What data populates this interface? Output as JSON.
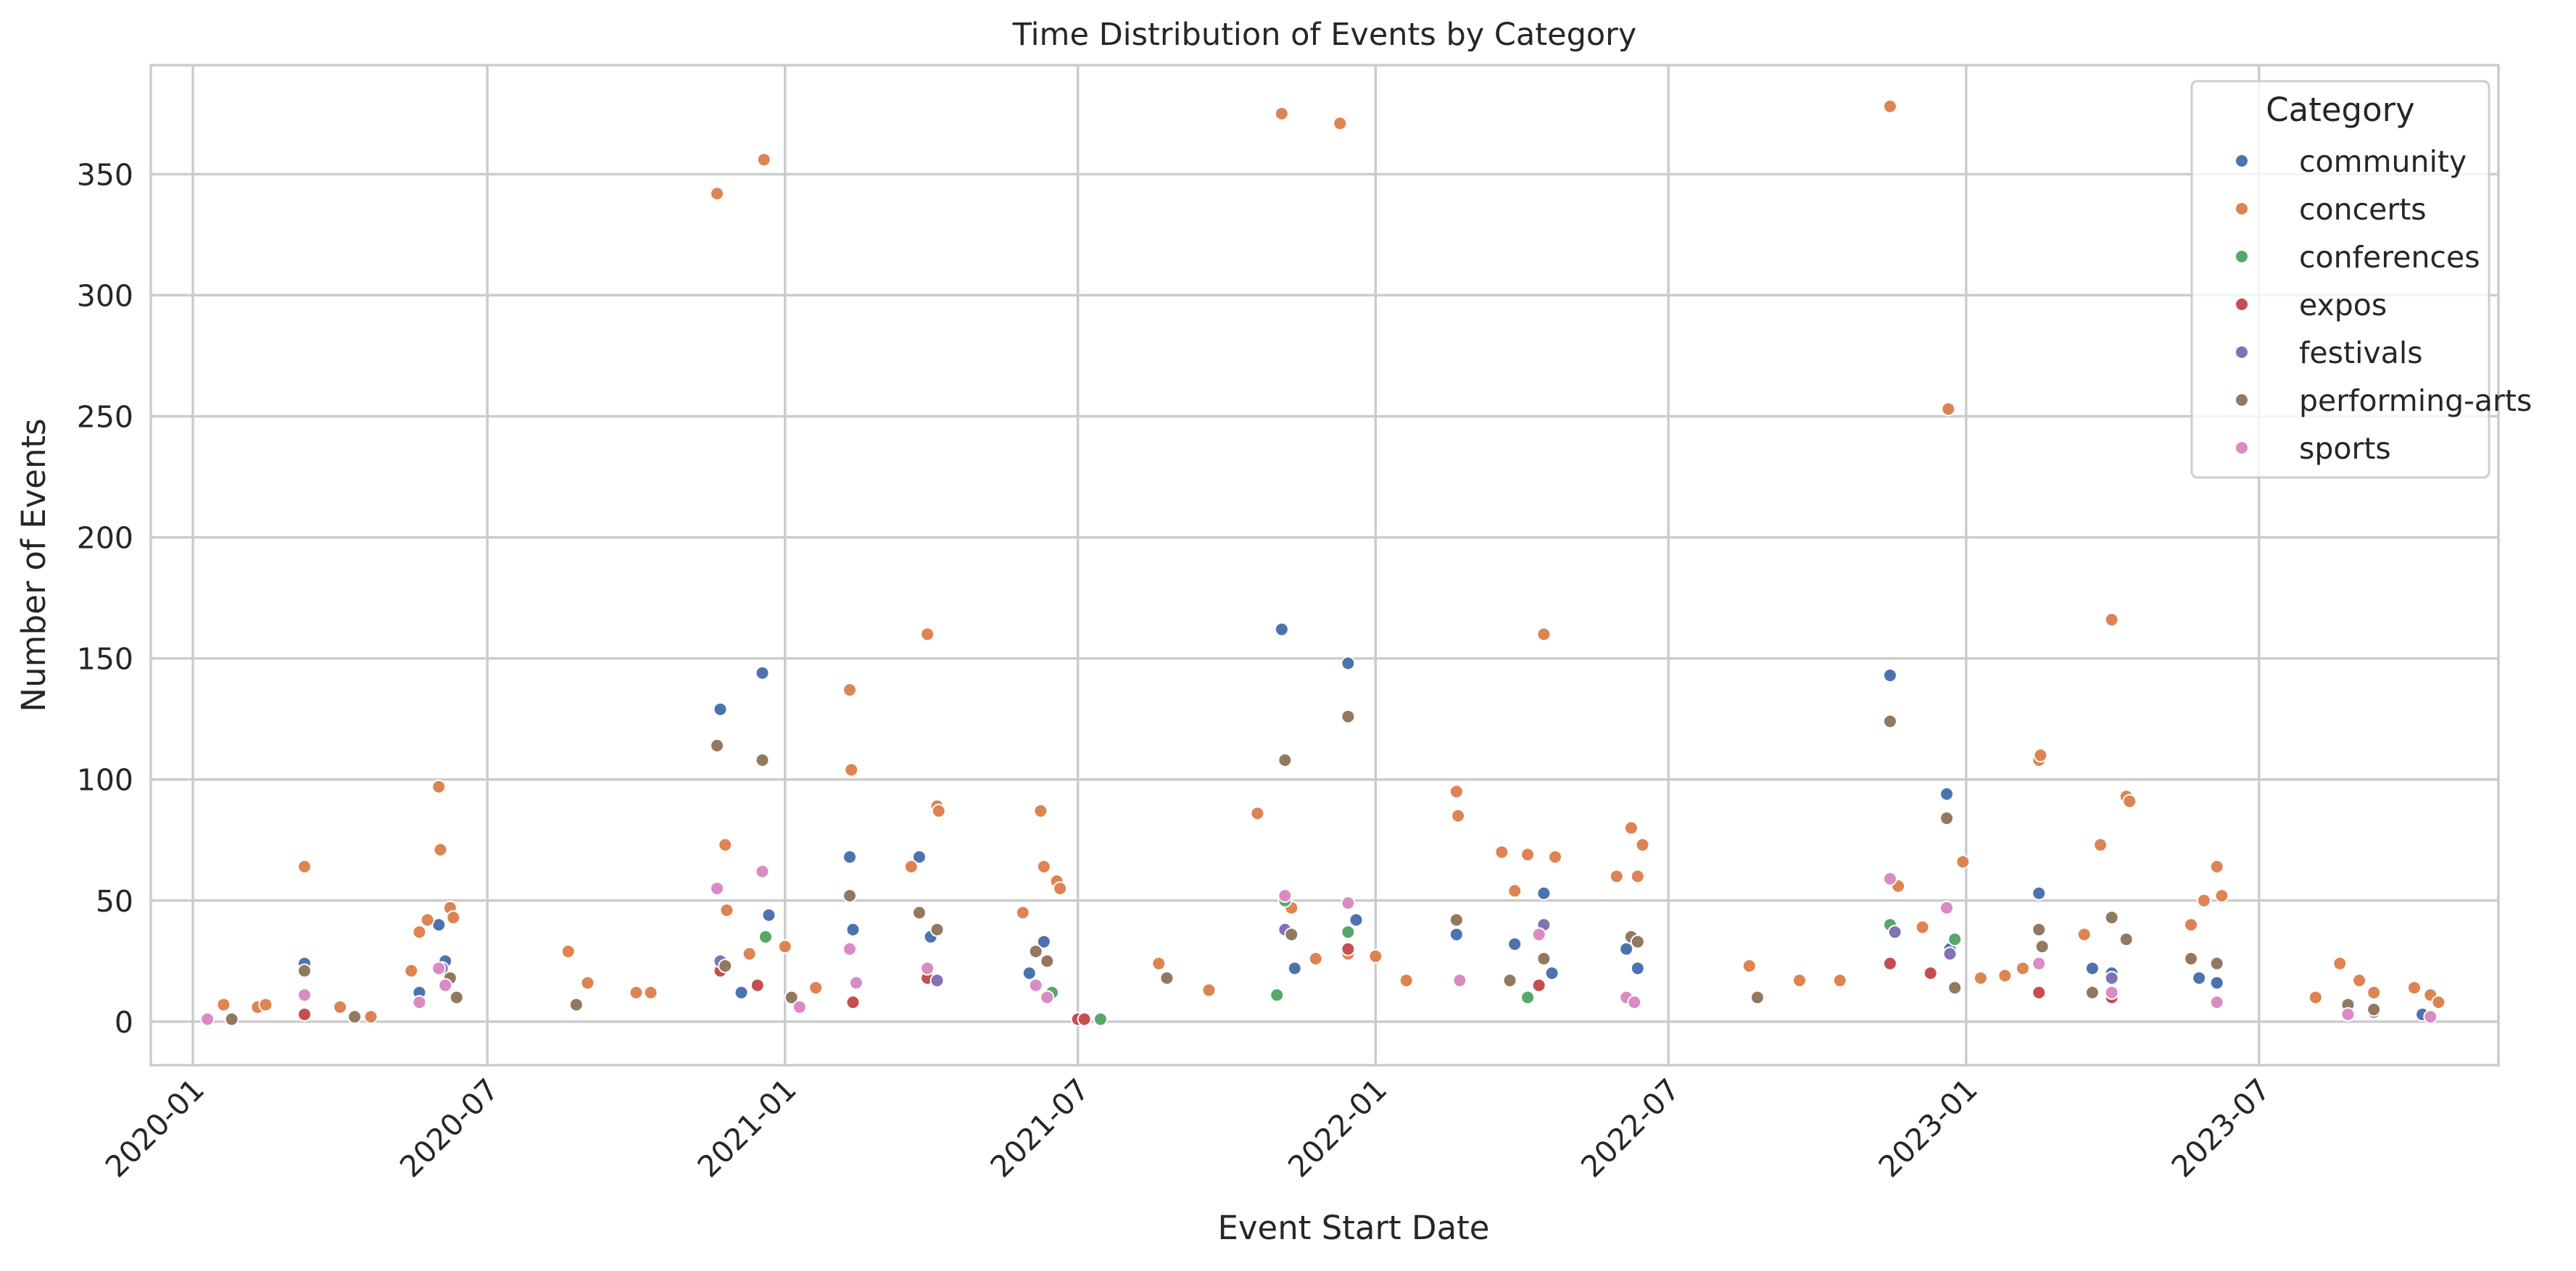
{
  "chart_data": {
    "type": "scatter",
    "title": "Time Distribution of Events by Category",
    "xlabel": "Event Start Date",
    "ylabel": "Number of Events",
    "x_type": "date",
    "xlim": [
      "2019-12-06",
      "2023-11-26"
    ],
    "ylim": [
      -18,
      395
    ],
    "x_ticks": [
      "2020-01",
      "2020-07",
      "2021-01",
      "2021-07",
      "2022-01",
      "2022-07",
      "2023-01",
      "2023-07"
    ],
    "x_tick_dates": [
      "2020-01-01",
      "2020-07-01",
      "2021-01-01",
      "2021-07-01",
      "2022-01-01",
      "2022-07-01",
      "2023-01-01",
      "2023-07-01"
    ],
    "y_ticks": [
      0,
      50,
      100,
      150,
      200,
      250,
      300,
      350
    ],
    "grid": true,
    "legend": {
      "title": "Category",
      "position": "top-right"
    },
    "series": [
      {
        "name": "community",
        "color": "#4c72b0",
        "points": [
          [
            "2020-03-10",
            24
          ],
          [
            "2020-05-20",
            12
          ],
          [
            "2020-06-01",
            40
          ],
          [
            "2020-06-05",
            25
          ],
          [
            "2020-06-08",
            18
          ],
          [
            "2020-11-22",
            129
          ],
          [
            "2020-12-05",
            12
          ],
          [
            "2020-12-18",
            144
          ],
          [
            "2020-12-22",
            44
          ],
          [
            "2021-02-10",
            68
          ],
          [
            "2021-02-12",
            38
          ],
          [
            "2021-03-25",
            68
          ],
          [
            "2021-04-01",
            35
          ],
          [
            "2021-06-01",
            20
          ],
          [
            "2021-06-10",
            33
          ],
          [
            "2021-11-04",
            162
          ],
          [
            "2021-11-12",
            22
          ],
          [
            "2021-12-15",
            148
          ],
          [
            "2021-12-20",
            42
          ],
          [
            "2022-02-20",
            36
          ],
          [
            "2022-03-28",
            32
          ],
          [
            "2022-04-15",
            53
          ],
          [
            "2022-04-20",
            20
          ],
          [
            "2022-06-05",
            30
          ],
          [
            "2022-06-12",
            22
          ],
          [
            "2022-11-15",
            143
          ],
          [
            "2022-12-20",
            94
          ],
          [
            "2022-12-22",
            30
          ],
          [
            "2023-02-15",
            53
          ],
          [
            "2023-03-20",
            22
          ],
          [
            "2023-04-01",
            20
          ],
          [
            "2023-05-25",
            18
          ],
          [
            "2023-06-05",
            16
          ],
          [
            "2023-09-10",
            4
          ],
          [
            "2023-10-10",
            3
          ]
        ]
      },
      {
        "name": "concerts",
        "color": "#dd8452",
        "points": [
          [
            "2020-01-20",
            7
          ],
          [
            "2020-02-10",
            6
          ],
          [
            "2020-02-15",
            7
          ],
          [
            "2020-03-10",
            64
          ],
          [
            "2020-04-01",
            6
          ],
          [
            "2020-04-20",
            2
          ],
          [
            "2020-05-15",
            21
          ],
          [
            "2020-05-20",
            37
          ],
          [
            "2020-05-25",
            42
          ],
          [
            "2020-06-01",
            97
          ],
          [
            "2020-06-02",
            71
          ],
          [
            "2020-06-08",
            47
          ],
          [
            "2020-06-10",
            43
          ],
          [
            "2020-08-20",
            29
          ],
          [
            "2020-09-01",
            16
          ],
          [
            "2020-10-01",
            12
          ],
          [
            "2020-10-10",
            12
          ],
          [
            "2020-11-20",
            342
          ],
          [
            "2020-11-25",
            73
          ],
          [
            "2020-11-26",
            46
          ],
          [
            "2020-12-10",
            28
          ],
          [
            "2020-12-19",
            356
          ],
          [
            "2021-01-01",
            31
          ],
          [
            "2021-01-20",
            14
          ],
          [
            "2021-02-10",
            137
          ],
          [
            "2021-02-11",
            104
          ],
          [
            "2021-03-20",
            64
          ],
          [
            "2021-03-30",
            160
          ],
          [
            "2021-04-05",
            89
          ],
          [
            "2021-04-06",
            87
          ],
          [
            "2021-05-28",
            45
          ],
          [
            "2021-06-08",
            87
          ],
          [
            "2021-06-10",
            64
          ],
          [
            "2021-06-18",
            58
          ],
          [
            "2021-06-20",
            55
          ],
          [
            "2021-08-20",
            24
          ],
          [
            "2021-09-20",
            13
          ],
          [
            "2021-10-20",
            86
          ],
          [
            "2021-11-04",
            375
          ],
          [
            "2021-11-10",
            47
          ],
          [
            "2021-11-25",
            26
          ],
          [
            "2021-12-10",
            371
          ],
          [
            "2021-12-15",
            28
          ],
          [
            "2022-01-01",
            27
          ],
          [
            "2022-01-20",
            17
          ],
          [
            "2022-02-20",
            95
          ],
          [
            "2022-02-21",
            85
          ],
          [
            "2022-03-20",
            70
          ],
          [
            "2022-03-28",
            54
          ],
          [
            "2022-04-05",
            69
          ],
          [
            "2022-04-15",
            160
          ],
          [
            "2022-04-22",
            68
          ],
          [
            "2022-05-30",
            60
          ],
          [
            "2022-06-08",
            80
          ],
          [
            "2022-06-15",
            73
          ],
          [
            "2022-06-12",
            60
          ],
          [
            "2022-08-20",
            23
          ],
          [
            "2022-09-20",
            17
          ],
          [
            "2022-10-15",
            17
          ],
          [
            "2022-11-15",
            378
          ],
          [
            "2022-11-20",
            56
          ],
          [
            "2022-12-05",
            39
          ],
          [
            "2022-12-21",
            253
          ],
          [
            "2022-12-30",
            66
          ],
          [
            "2023-01-10",
            18
          ],
          [
            "2023-01-25",
            19
          ],
          [
            "2023-02-05",
            22
          ],
          [
            "2023-02-15",
            108
          ],
          [
            "2023-02-16",
            110
          ],
          [
            "2023-03-15",
            36
          ],
          [
            "2023-03-25",
            73
          ],
          [
            "2023-04-01",
            166
          ],
          [
            "2023-04-10",
            93
          ],
          [
            "2023-04-12",
            91
          ],
          [
            "2023-05-20",
            40
          ],
          [
            "2023-05-28",
            50
          ],
          [
            "2023-06-05",
            64
          ],
          [
            "2023-06-08",
            52
          ],
          [
            "2023-08-05",
            10
          ],
          [
            "2023-08-20",
            24
          ],
          [
            "2023-09-01",
            17
          ],
          [
            "2023-09-10",
            12
          ],
          [
            "2023-10-05",
            14
          ],
          [
            "2023-10-15",
            11
          ],
          [
            "2023-10-20",
            8
          ]
        ]
      },
      {
        "name": "conferences",
        "color": "#55a868",
        "points": [
          [
            "2020-12-20",
            35
          ],
          [
            "2021-06-15",
            12
          ],
          [
            "2021-07-15",
            1
          ],
          [
            "2021-11-01",
            11
          ],
          [
            "2021-11-06",
            50
          ],
          [
            "2021-12-15",
            37
          ],
          [
            "2022-04-05",
            10
          ],
          [
            "2022-04-15",
            26
          ],
          [
            "2022-11-15",
            40
          ],
          [
            "2022-12-25",
            34
          ]
        ]
      },
      {
        "name": "expos",
        "color": "#c44e52",
        "points": [
          [
            "2020-03-10",
            3
          ],
          [
            "2020-11-22",
            21
          ],
          [
            "2020-12-15",
            15
          ],
          [
            "2021-02-12",
            8
          ],
          [
            "2021-03-30",
            18
          ],
          [
            "2021-07-01",
            1
          ],
          [
            "2021-07-05",
            1
          ],
          [
            "2021-12-15",
            30
          ],
          [
            "2022-04-12",
            15
          ],
          [
            "2022-11-15",
            24
          ],
          [
            "2022-12-10",
            20
          ],
          [
            "2023-02-15",
            12
          ],
          [
            "2023-04-01",
            10
          ]
        ]
      },
      {
        "name": "festivals",
        "color": "#8172b3",
        "points": [
          [
            "2020-06-03",
            22
          ],
          [
            "2020-11-22",
            25
          ],
          [
            "2021-04-05",
            17
          ],
          [
            "2021-11-06",
            38
          ],
          [
            "2022-04-15",
            40
          ],
          [
            "2022-11-18",
            37
          ],
          [
            "2022-12-22",
            28
          ],
          [
            "2023-04-01",
            18
          ]
        ]
      },
      {
        "name": "performing-arts",
        "color": "#937860",
        "points": [
          [
            "2020-01-25",
            1
          ],
          [
            "2020-03-10",
            21
          ],
          [
            "2020-04-10",
            2
          ],
          [
            "2020-06-08",
            18
          ],
          [
            "2020-06-12",
            10
          ],
          [
            "2020-08-25",
            7
          ],
          [
            "2020-11-20",
            114
          ],
          [
            "2020-11-25",
            23
          ],
          [
            "2020-12-18",
            108
          ],
          [
            "2021-01-05",
            10
          ],
          [
            "2021-02-10",
            52
          ],
          [
            "2021-03-25",
            45
          ],
          [
            "2021-04-05",
            38
          ],
          [
            "2021-06-05",
            29
          ],
          [
            "2021-06-12",
            25
          ],
          [
            "2021-08-25",
            18
          ],
          [
            "2021-11-06",
            108
          ],
          [
            "2021-11-10",
            36
          ],
          [
            "2021-12-15",
            126
          ],
          [
            "2022-02-20",
            42
          ],
          [
            "2022-03-25",
            17
          ],
          [
            "2022-04-15",
            26
          ],
          [
            "2022-06-08",
            35
          ],
          [
            "2022-06-12",
            33
          ],
          [
            "2022-08-25",
            10
          ],
          [
            "2022-11-15",
            124
          ],
          [
            "2022-12-20",
            84
          ],
          [
            "2022-12-25",
            14
          ],
          [
            "2023-02-15",
            38
          ],
          [
            "2023-02-17",
            31
          ],
          [
            "2023-03-20",
            12
          ],
          [
            "2023-04-01",
            43
          ],
          [
            "2023-04-10",
            34
          ],
          [
            "2023-05-20",
            26
          ],
          [
            "2023-06-05",
            24
          ],
          [
            "2023-08-25",
            7
          ],
          [
            "2023-09-10",
            5
          ]
        ]
      },
      {
        "name": "sports",
        "color": "#da8bc3",
        "points": [
          [
            "2020-01-10",
            1
          ],
          [
            "2020-03-10",
            11
          ],
          [
            "2020-05-20",
            8
          ],
          [
            "2020-06-01",
            22
          ],
          [
            "2020-06-05",
            15
          ],
          [
            "2020-11-20",
            55
          ],
          [
            "2020-12-18",
            62
          ],
          [
            "2021-01-10",
            6
          ],
          [
            "2021-02-10",
            30
          ],
          [
            "2021-02-14",
            16
          ],
          [
            "2021-03-30",
            22
          ],
          [
            "2021-06-05",
            15
          ],
          [
            "2021-06-12",
            10
          ],
          [
            "2021-11-06",
            52
          ],
          [
            "2021-12-15",
            49
          ],
          [
            "2022-02-22",
            17
          ],
          [
            "2022-04-12",
            36
          ],
          [
            "2022-06-05",
            10
          ],
          [
            "2022-06-10",
            8
          ],
          [
            "2022-11-15",
            59
          ],
          [
            "2022-12-20",
            47
          ],
          [
            "2023-02-15",
            24
          ],
          [
            "2023-04-01",
            12
          ],
          [
            "2023-06-05",
            8
          ],
          [
            "2023-08-25",
            3
          ],
          [
            "2023-10-15",
            2
          ]
        ]
      }
    ]
  }
}
